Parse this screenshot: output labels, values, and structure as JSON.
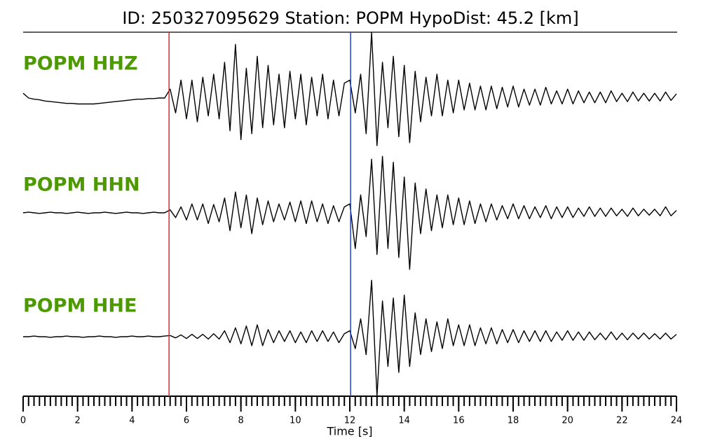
{
  "chart_data": {
    "type": "line",
    "title": "ID: 250327095629   Station: POPM   HypoDist:    45.2 [km]",
    "xlabel": "Time [s]",
    "xlim": [
      0,
      24
    ],
    "xticks": [
      0,
      2,
      4,
      6,
      8,
      10,
      12,
      14,
      16,
      18,
      20,
      22,
      24
    ],
    "xminor_step": 0.2,
    "markers": [
      {
        "x": 5.36,
        "color": "#e8262a"
      },
      {
        "x": 12.03,
        "color": "#2a3fc0"
      }
    ],
    "x": [
      0,
      0.2,
      0.4,
      0.6,
      0.8,
      1,
      1.2,
      1.4,
      1.6,
      1.8,
      2,
      2.2,
      2.4,
      2.6,
      2.8,
      3,
      3.2,
      3.4,
      3.6,
      3.8,
      4,
      4.2,
      4.4,
      4.6,
      4.8,
      5,
      5.2,
      5.4,
      5.6,
      5.8,
      6,
      6.2,
      6.4,
      6.6,
      6.8,
      7,
      7.2,
      7.4,
      7.6,
      7.8,
      8,
      8.2,
      8.4,
      8.6,
      8.8,
      9,
      9.2,
      9.4,
      9.6,
      9.8,
      10,
      10.2,
      10.4,
      10.6,
      10.8,
      11,
      11.2,
      11.4,
      11.6,
      11.8,
      12,
      12.2,
      12.4,
      12.6,
      12.8,
      13,
      13.2,
      13.4,
      13.6,
      13.8,
      14,
      14.2,
      14.4,
      14.6,
      14.8,
      15,
      15.2,
      15.4,
      15.6,
      15.8,
      16,
      16.2,
      16.4,
      16.6,
      16.8,
      17,
      17.2,
      17.4,
      17.6,
      17.8,
      18,
      18.2,
      18.4,
      18.6,
      18.8,
      19,
      19.2,
      19.4,
      19.6,
      19.8,
      20,
      20.2,
      20.4,
      20.6,
      20.8,
      21,
      21.2,
      21.4,
      21.6,
      21.8,
      22,
      22.2,
      22.4,
      22.6,
      22.8,
      23,
      23.2,
      23.4,
      23.6,
      23.8,
      24
    ],
    "series": [
      {
        "name": "POPM HHZ",
        "color": "#000000",
        "label_color": "#4c9a00",
        "values": [
          0.08,
          0,
          -0.02,
          -0.03,
          -0.05,
          -0.06,
          -0.07,
          -0.08,
          -0.09,
          -0.09,
          -0.1,
          -0.1,
          -0.1,
          -0.1,
          -0.09,
          -0.08,
          -0.07,
          -0.06,
          -0.05,
          -0.04,
          -0.03,
          -0.02,
          -0.02,
          -0.01,
          -0.01,
          0,
          0,
          0.15,
          -0.25,
          0.3,
          -0.35,
          0.3,
          -0.4,
          0.35,
          -0.3,
          0.4,
          -0.35,
          0.6,
          -0.55,
          0.9,
          -0.7,
          0.5,
          -0.6,
          0.7,
          -0.5,
          0.55,
          -0.45,
          0.4,
          -0.5,
          0.45,
          -0.35,
          0.4,
          -0.45,
          0.35,
          -0.3,
          0.4,
          -0.35,
          0.3,
          -0.3,
          0.25,
          0.3,
          -0.25,
          0.4,
          -0.6,
          1.1,
          -0.8,
          0.6,
          -0.5,
          0.7,
          -0.65,
          0.55,
          -0.75,
          0.45,
          -0.4,
          0.35,
          -0.3,
          0.4,
          -0.3,
          0.3,
          -0.25,
          0.3,
          -0.2,
          0.25,
          -0.2,
          0.2,
          -0.2,
          0.2,
          -0.18,
          0.18,
          -0.15,
          0.2,
          -0.15,
          0.15,
          -0.12,
          0.15,
          -0.12,
          0.18,
          -0.1,
          0.12,
          -0.1,
          0.15,
          -0.1,
          0.12,
          -0.08,
          0.1,
          -0.08,
          0.1,
          -0.08,
          0.12,
          -0.06,
          0.08,
          -0.06,
          0.1,
          -0.05,
          0.08,
          -0.05,
          0.08,
          -0.05,
          0.1,
          -0.04,
          0.07
        ]
      },
      {
        "name": "POPM HHN",
        "color": "#000000",
        "label_color": "#4c9a00",
        "values": [
          0,
          0.01,
          0,
          -0.01,
          0,
          0.01,
          0,
          0,
          -0.01,
          0,
          0.01,
          0,
          -0.01,
          0,
          0,
          0.01,
          0,
          -0.01,
          0,
          0.01,
          0,
          0,
          -0.01,
          0,
          0.01,
          0,
          0,
          0.05,
          -0.08,
          0.1,
          -0.12,
          0.15,
          -0.12,
          0.15,
          -0.18,
          0.14,
          -0.15,
          0.25,
          -0.3,
          0.35,
          -0.25,
          0.3,
          -0.35,
          0.25,
          -0.2,
          0.2,
          -0.15,
          0.15,
          -0.12,
          0.18,
          -0.15,
          0.2,
          -0.18,
          0.2,
          -0.15,
          0.15,
          -0.18,
          0.12,
          -0.15,
          0.1,
          0.15,
          -0.6,
          0.3,
          -0.4,
          0.9,
          -0.7,
          0.95,
          -0.6,
          0.85,
          -0.75,
          0.6,
          -0.95,
          0.5,
          -0.35,
          0.4,
          -0.3,
          0.3,
          -0.25,
          0.3,
          -0.2,
          0.25,
          -0.2,
          0.2,
          -0.18,
          0.15,
          -0.15,
          0.15,
          -0.12,
          0.12,
          -0.1,
          0.15,
          -0.1,
          0.12,
          -0.1,
          0.1,
          -0.08,
          0.12,
          -0.1,
          0.1,
          -0.08,
          0.1,
          -0.08,
          0.08,
          -0.06,
          0.1,
          -0.06,
          0.08,
          -0.06,
          0.08,
          -0.05,
          0.06,
          -0.06,
          0.08,
          -0.05,
          0.06,
          -0.04,
          0.06,
          -0.05,
          0.1,
          -0.05,
          0.04
        ]
      },
      {
        "name": "POPM HHE",
        "color": "#000000",
        "label_color": "#4c9a00",
        "values": [
          0,
          0,
          0.01,
          0,
          0,
          -0.01,
          0,
          0,
          0.01,
          0,
          0,
          -0.01,
          0,
          0,
          0.01,
          0,
          0,
          -0.01,
          0,
          0,
          0.01,
          0,
          0,
          0.01,
          0,
          0,
          0.01,
          0.02,
          -0.02,
          0.03,
          -0.03,
          0.04,
          -0.03,
          0.04,
          -0.04,
          0.05,
          -0.04,
          0.1,
          -0.1,
          0.15,
          -0.12,
          0.18,
          -0.15,
          0.2,
          -0.15,
          0.12,
          -0.1,
          0.1,
          -0.08,
          0.1,
          -0.1,
          0.08,
          -0.1,
          0.1,
          -0.08,
          0.1,
          -0.08,
          0.08,
          -0.1,
          0.05,
          0.1,
          -0.2,
          0.3,
          -0.3,
          0.95,
          -1.0,
          0.6,
          -0.5,
          0.65,
          -0.6,
          0.7,
          -0.5,
          0.4,
          -0.3,
          0.3,
          -0.25,
          0.25,
          -0.2,
          0.3,
          -0.15,
          0.2,
          -0.15,
          0.2,
          -0.15,
          0.15,
          -0.12,
          0.15,
          -0.12,
          0.12,
          -0.1,
          0.12,
          -0.1,
          0.1,
          -0.08,
          0.1,
          -0.08,
          0.1,
          -0.08,
          0.08,
          -0.06,
          0.1,
          -0.06,
          0.08,
          -0.06,
          0.08,
          -0.05,
          0.06,
          -0.05,
          0.08,
          -0.05,
          0.06,
          -0.05,
          0.06,
          -0.04,
          0.06,
          -0.04,
          0.05,
          -0.04,
          0.06,
          -0.04,
          0.04
        ]
      }
    ]
  }
}
